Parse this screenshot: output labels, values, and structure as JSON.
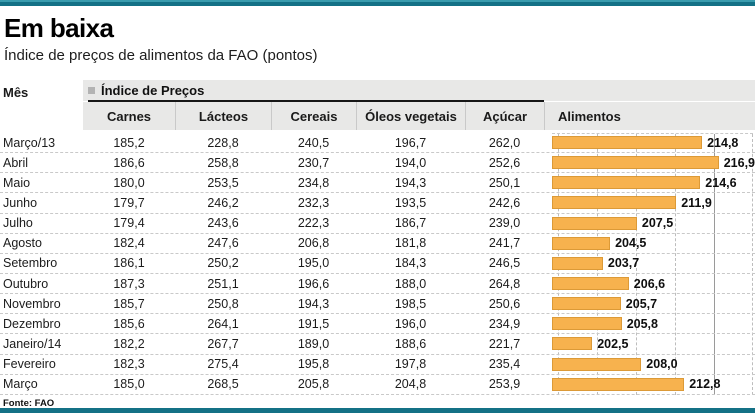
{
  "header": {
    "title": "Em baixa",
    "subtitle": "Índice de preços de alimentos da FAO (pontos)"
  },
  "table": {
    "mes_label": "Mês",
    "group_label": "Índice de Preços",
    "columns": [
      "Carnes",
      "Lácteos",
      "Cereais",
      "Óleos vegetais",
      "Açúcar",
      "Alimentos"
    ],
    "rows": [
      {
        "mes": "Março/13",
        "values": [
          "185,2",
          "228,8",
          "240,5",
          "196,7",
          "262,0"
        ],
        "alimentos": "214,8"
      },
      {
        "mes": "Abril",
        "values": [
          "186,6",
          "258,8",
          "230,7",
          "194,0",
          "252,6"
        ],
        "alimentos": "216,9"
      },
      {
        "mes": "Maio",
        "values": [
          "180,0",
          "253,5",
          "234,8",
          "194,3",
          "250,1"
        ],
        "alimentos": "214,6"
      },
      {
        "mes": "Junho",
        "values": [
          "179,7",
          "246,2",
          "232,3",
          "193,5",
          "242,6"
        ],
        "alimentos": "211,9"
      },
      {
        "mes": "Julho",
        "values": [
          "179,4",
          "243,6",
          "222,3",
          "186,7",
          "239,0"
        ],
        "alimentos": "207,5"
      },
      {
        "mes": "Agosto",
        "values": [
          "182,4",
          "247,6",
          "206,8",
          "181,8",
          "241,7"
        ],
        "alimentos": "204,5"
      },
      {
        "mes": "Setembro",
        "values": [
          "186,1",
          "250,2",
          "195,0",
          "184,3",
          "246,5"
        ],
        "alimentos": "203,7"
      },
      {
        "mes": "Outubro",
        "values": [
          "187,3",
          "251,1",
          "196,6",
          "188,0",
          "264,8"
        ],
        "alimentos": "206,6"
      },
      {
        "mes": "Novembro",
        "values": [
          "185,7",
          "250,8",
          "194,3",
          "198,5",
          "250,6"
        ],
        "alimentos": "205,7"
      },
      {
        "mes": "Dezembro",
        "values": [
          "185,6",
          "264,1",
          "191,5",
          "196,0",
          "234,9"
        ],
        "alimentos": "205,8"
      },
      {
        "mes": "Janeiro/14",
        "values": [
          "182,2",
          "267,7",
          "189,0",
          "188,6",
          "221,7"
        ],
        "alimentos": "202,5"
      },
      {
        "mes": "Fevereiro",
        "values": [
          "182,3",
          "275,4",
          "195,8",
          "197,8",
          "235,4"
        ],
        "alimentos": "208,0"
      },
      {
        "mes": "Março",
        "values": [
          "185,0",
          "268,5",
          "205,8",
          "204,8",
          "253,9"
        ],
        "alimentos": "212,8"
      }
    ]
  },
  "footer": {
    "source": "Fonte: FAO"
  },
  "colors": {
    "accent_teal": "#147186",
    "bar_orange": "#F7B24E",
    "band_gray": "#E8E8E7"
  },
  "chart_data": {
    "type": "bar",
    "orientation": "horizontal",
    "title": "Em baixa",
    "subtitle": "Índice de preços de alimentos da FAO (pontos)",
    "categories": [
      "Março/13",
      "Abril",
      "Maio",
      "Junho",
      "Julho",
      "Agosto",
      "Setembro",
      "Outubro",
      "Novembro",
      "Dezembro",
      "Janeiro/14",
      "Fevereiro",
      "Março"
    ],
    "series": [
      {
        "name": "Carnes",
        "values": [
          185.2,
          186.6,
          180.0,
          179.7,
          179.4,
          182.4,
          186.1,
          187.3,
          185.7,
          185.6,
          182.2,
          182.3,
          185.0
        ]
      },
      {
        "name": "Lácteos",
        "values": [
          228.8,
          258.8,
          253.5,
          246.2,
          243.6,
          247.6,
          250.2,
          251.1,
          250.8,
          264.1,
          267.7,
          275.4,
          268.5
        ]
      },
      {
        "name": "Cereais",
        "values": [
          240.5,
          230.7,
          234.8,
          232.3,
          222.3,
          206.8,
          195.0,
          196.6,
          194.3,
          191.5,
          189.0,
          195.8,
          205.8
        ]
      },
      {
        "name": "Óleos vegetais",
        "values": [
          196.7,
          194.0,
          194.3,
          193.5,
          186.7,
          181.8,
          184.3,
          188.0,
          198.5,
          196.0,
          188.6,
          197.8,
          204.8
        ]
      },
      {
        "name": "Açúcar",
        "values": [
          262.0,
          252.6,
          250.1,
          242.6,
          239.0,
          241.7,
          246.5,
          264.8,
          250.6,
          234.9,
          221.7,
          235.4,
          253.9
        ]
      },
      {
        "name": "Alimentos",
        "values": [
          214.8,
          216.9,
          214.6,
          211.9,
          207.5,
          204.5,
          203.7,
          206.6,
          205.7,
          205.8,
          202.5,
          208.0,
          212.8
        ]
      }
    ],
    "bar_series": "Alimentos",
    "xlim": [
      198,
      220.5
    ],
    "grid": true,
    "legend": "none",
    "bar_color": "#F7B24E"
  }
}
